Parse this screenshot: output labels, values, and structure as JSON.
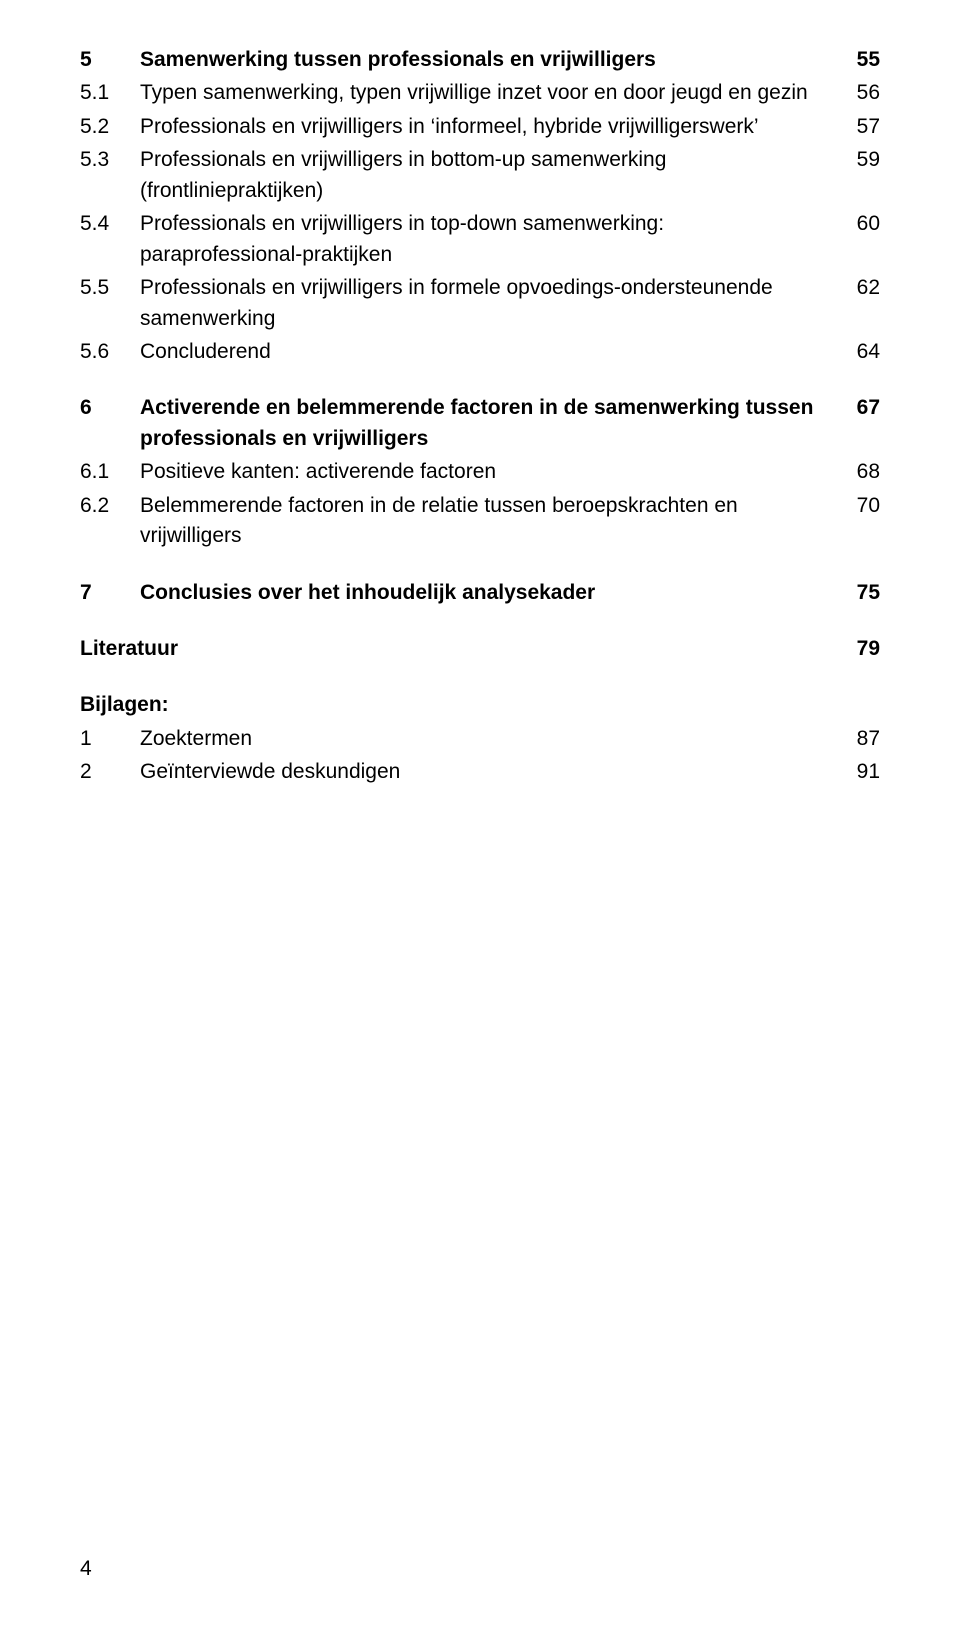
{
  "toc": {
    "sec5": {
      "num": "5",
      "title": "Samenwerking tussen professionals en vrijwilligers",
      "page": "55",
      "items": [
        {
          "num": "5.1",
          "title": "Typen samenwerking, typen vrijwillige inzet voor en door jeugd en gezin",
          "page": "56"
        },
        {
          "num": "5.2",
          "title": "Professionals en vrijwilligers in ‘informeel, hybride vrijwilligerswerk’",
          "page": "57"
        },
        {
          "num": "5.3",
          "title": "Professionals en vrijwilligers in bottom-up samenwerking (frontliniepraktijken)",
          "page": "59"
        },
        {
          "num": "5.4",
          "title": "Professionals en vrijwilligers in top-down samenwerking: paraprofessional-praktijken",
          "page": "60"
        },
        {
          "num": "5.5",
          "title": "Professionals en vrijwilligers in formele opvoedings-ondersteunende samenwerking",
          "page": "62"
        },
        {
          "num": "5.6",
          "title": "Concluderend",
          "page": "64"
        }
      ]
    },
    "sec6": {
      "num": "6",
      "title": "Activerende en belemmerende factoren in de samenwerking tussen professionals en vrijwilligers",
      "page": "67",
      "items": [
        {
          "num": "6.1",
          "title": "Positieve kanten: activerende factoren",
          "page": "68"
        },
        {
          "num": "6.2",
          "title": "Belemmerende factoren in de relatie tussen beroepskrachten en vrijwilligers",
          "page": "70"
        }
      ]
    },
    "sec7": {
      "num": "7",
      "title": "Conclusies over het inhoudelijk analysekader",
      "page": "75"
    },
    "lit": {
      "title": "Literatuur",
      "page": "79"
    },
    "bijlagen": {
      "label": "Bijlagen:",
      "items": [
        {
          "num": "1",
          "title": "Zoektermen",
          "page": "87"
        },
        {
          "num": "2",
          "title": "Geïnterviewde deskundigen",
          "page": "91"
        }
      ]
    }
  },
  "pageNumber": "4"
}
